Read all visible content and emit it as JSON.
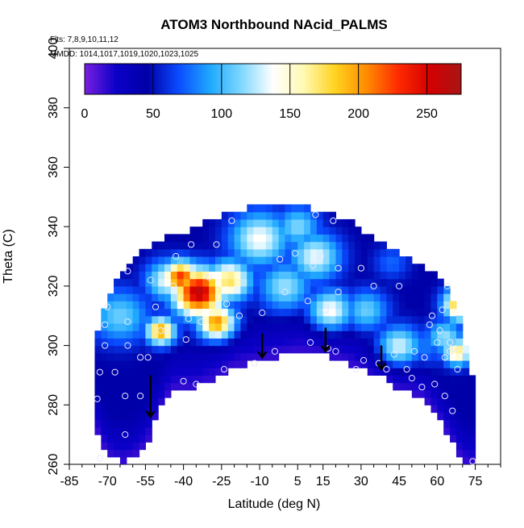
{
  "chart_data": {
    "type": "heatmap",
    "title": "ATOM3 Northbound NAcid_PALMS",
    "flights_label": "Flts: 7,8,9,10,11,12",
    "dates_label": "MMDD: 1014,1017,1019,1020,1023,1025",
    "xlabel": "Latitude (deg N)",
    "ylabel": "Theta (C)",
    "xlim": [
      -85,
      85
    ],
    "ylim": [
      260,
      400
    ],
    "x_ticks": [
      -85,
      -70,
      -55,
      -40,
      -25,
      -10,
      5,
      15,
      30,
      45,
      60,
      75
    ],
    "y_ticks": [
      260,
      280,
      300,
      320,
      340,
      360,
      380,
      400
    ],
    "colorbar": {
      "range": [
        0,
        275
      ],
      "ticks": [
        0,
        50,
        100,
        150,
        200,
        250
      ],
      "colors": [
        "#7a1fe0",
        "#0b00c8",
        "#0000a8",
        "#0a4cff",
        "#1fa8ff",
        "#7fd8ff",
        "#ffffff",
        "#fff9b0",
        "#ffd21e",
        "#ff8a00",
        "#ff2a00",
        "#d40000",
        "#a81515"
      ]
    },
    "field_bounds": {
      "lat": [
        -75,
        -70,
        -65,
        -60,
        -55,
        -50,
        -45,
        -40,
        -35,
        -30,
        -25,
        -20,
        -15,
        -10,
        -5,
        0,
        5,
        10,
        15,
        20,
        25,
        30,
        35,
        40,
        45,
        50,
        55,
        60,
        65,
        70,
        73
      ],
      "theta_top": [
        300,
        316,
        322,
        327,
        332,
        334,
        336,
        337,
        338,
        341,
        343,
        344,
        345,
        346,
        346,
        346,
        346,
        345,
        344,
        343,
        341,
        338,
        335,
        333,
        330,
        327,
        325,
        322,
        317,
        305,
        288
      ],
      "theta_bottom": [
        274,
        264,
        262,
        263,
        267,
        278,
        286,
        287,
        287,
        289,
        291,
        294,
        295,
        296,
        297,
        298,
        299,
        300,
        298,
        297,
        295,
        293,
        292,
        291,
        286,
        285,
        283,
        277,
        270,
        262,
        261
      ]
    },
    "hotspots": [
      {
        "lat": -34,
        "theta": 318,
        "value": 265,
        "spread": 7
      },
      {
        "lat": -41,
        "theta": 323,
        "value": 230,
        "spread": 5
      },
      {
        "lat": -27,
        "theta": 308,
        "value": 205,
        "spread": 5
      },
      {
        "lat": -22,
        "theta": 322,
        "value": 175,
        "spread": 6
      },
      {
        "lat": -49,
        "theta": 305,
        "value": 200,
        "spread": 4
      },
      {
        "lat": -46,
        "theta": 322,
        "value": 140,
        "spread": 6
      },
      {
        "lat": -65,
        "theta": 310,
        "value": 110,
        "spread": 8
      },
      {
        "lat": -10,
        "theta": 336,
        "value": 140,
        "spread": 8
      },
      {
        "lat": 0,
        "theta": 320,
        "value": 120,
        "spread": 7
      },
      {
        "lat": 12,
        "theta": 330,
        "value": 135,
        "spread": 7
      },
      {
        "lat": 18,
        "theta": 312,
        "value": 140,
        "spread": 6
      },
      {
        "lat": 5,
        "theta": 340,
        "value": 115,
        "spread": 6
      },
      {
        "lat": 32,
        "theta": 312,
        "value": 110,
        "spread": 6
      },
      {
        "lat": 45,
        "theta": 300,
        "value": 130,
        "spread": 6
      },
      {
        "lat": 42,
        "theta": 328,
        "value": 75,
        "spread": 5
      },
      {
        "lat": 55,
        "theta": 300,
        "value": 80,
        "spread": 6
      },
      {
        "lat": 63,
        "theta": 303,
        "value": 120,
        "spread": 5
      },
      {
        "lat": 68,
        "theta": 298,
        "value": 170,
        "spread": 4
      },
      {
        "lat": 70,
        "theta": 314,
        "value": 215,
        "spread": 5
      },
      {
        "lat": 73,
        "theta": 318,
        "value": 250,
        "spread": 4
      }
    ],
    "samples": [
      {
        "lat": -73,
        "theta": 262
      },
      {
        "lat": -74,
        "theta": 282
      },
      {
        "lat": -73,
        "theta": 291
      },
      {
        "lat": -71,
        "theta": 307
      },
      {
        "lat": -71,
        "theta": 300
      },
      {
        "lat": -70,
        "theta": 313
      },
      {
        "lat": -67,
        "theta": 291
      },
      {
        "lat": -63,
        "theta": 283
      },
      {
        "lat": -63,
        "theta": 270
      },
      {
        "lat": -62,
        "theta": 300
      },
      {
        "lat": -62,
        "theta": 308
      },
      {
        "lat": -62,
        "theta": 325
      },
      {
        "lat": -57,
        "theta": 283
      },
      {
        "lat": -57,
        "theta": 296
      },
      {
        "lat": -54,
        "theta": 296
      },
      {
        "lat": -53,
        "theta": 322
      },
      {
        "lat": -51,
        "theta": 313
      },
      {
        "lat": -49,
        "theta": 305
      },
      {
        "lat": -47,
        "theta": 305
      },
      {
        "lat": -44,
        "theta": 320
      },
      {
        "lat": -43,
        "theta": 330
      },
      {
        "lat": -40,
        "theta": 288
      },
      {
        "lat": -39,
        "theta": 302
      },
      {
        "lat": -38,
        "theta": 309
      },
      {
        "lat": -37,
        "theta": 334
      },
      {
        "lat": -35,
        "theta": 287
      },
      {
        "lat": -33,
        "theta": 308
      },
      {
        "lat": -30,
        "theta": 323
      },
      {
        "lat": -27,
        "theta": 334
      },
      {
        "lat": -24,
        "theta": 292
      },
      {
        "lat": -23,
        "theta": 314
      },
      {
        "lat": -21,
        "theta": 342
      },
      {
        "lat": -18,
        "theta": 310
      },
      {
        "lat": -12,
        "theta": 294
      },
      {
        "lat": -9,
        "theta": 311
      },
      {
        "lat": -4,
        "theta": 298
      },
      {
        "lat": -2,
        "theta": 329
      },
      {
        "lat": 0,
        "theta": 318
      },
      {
        "lat": 4,
        "theta": 331
      },
      {
        "lat": 9,
        "theta": 315
      },
      {
        "lat": 10,
        "theta": 301
      },
      {
        "lat": 11,
        "theta": 327
      },
      {
        "lat": 12,
        "theta": 344
      },
      {
        "lat": 14,
        "theta": 330
      },
      {
        "lat": 16,
        "theta": 312
      },
      {
        "lat": 17,
        "theta": 299
      },
      {
        "lat": 19,
        "theta": 342
      },
      {
        "lat": 20,
        "theta": 298
      },
      {
        "lat": 21,
        "theta": 326
      },
      {
        "lat": 21,
        "theta": 318
      },
      {
        "lat": 28,
        "theta": 292
      },
      {
        "lat": 30,
        "theta": 326
      },
      {
        "lat": 31,
        "theta": 295
      },
      {
        "lat": 35,
        "theta": 320
      },
      {
        "lat": 37,
        "theta": 294
      },
      {
        "lat": 40,
        "theta": 292
      },
      {
        "lat": 43,
        "theta": 297
      },
      {
        "lat": 45,
        "theta": 320
      },
      {
        "lat": 48,
        "theta": 292
      },
      {
        "lat": 50,
        "theta": 289
      },
      {
        "lat": 51,
        "theta": 298
      },
      {
        "lat": 54,
        "theta": 286
      },
      {
        "lat": 55,
        "theta": 296
      },
      {
        "lat": 57,
        "theta": 307
      },
      {
        "lat": 58,
        "theta": 310
      },
      {
        "lat": 59,
        "theta": 287
      },
      {
        "lat": 60,
        "theta": 301
      },
      {
        "lat": 61,
        "theta": 305
      },
      {
        "lat": 62,
        "theta": 312
      },
      {
        "lat": 63,
        "theta": 283
      },
      {
        "lat": 63,
        "theta": 296
      },
      {
        "lat": 64,
        "theta": 320
      },
      {
        "lat": 65,
        "theta": 301
      },
      {
        "lat": 65,
        "theta": 298
      },
      {
        "lat": 66,
        "theta": 278
      },
      {
        "lat": 67,
        "theta": 299
      },
      {
        "lat": 68,
        "theta": 292
      },
      {
        "lat": 74,
        "theta": 261
      }
    ],
    "arrows": [
      {
        "lat": -53,
        "theta_from": 290,
        "theta_to": 276
      },
      {
        "lat": -9,
        "theta_from": 304,
        "theta_to": 296
      },
      {
        "lat": 16,
        "theta_from": 306,
        "theta_to": 298
      },
      {
        "lat": 38,
        "theta_from": 300,
        "theta_to": 292
      }
    ]
  }
}
